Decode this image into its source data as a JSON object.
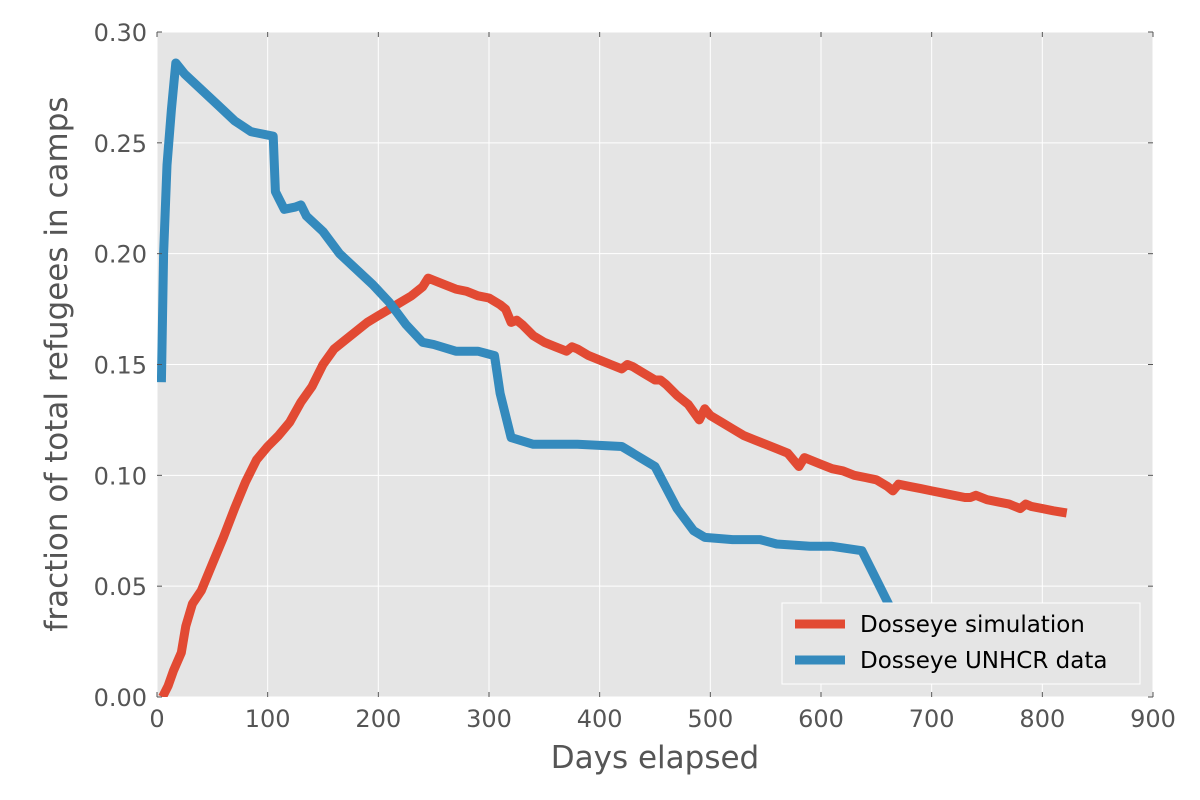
{
  "chart_data": {
    "type": "line",
    "title": "",
    "xlabel": "Days elapsed",
    "ylabel": "fraction of total refugees in camps",
    "xlim": [
      0,
      900
    ],
    "ylim": [
      0,
      0.3
    ],
    "x_ticks": [
      "0",
      "100",
      "200",
      "300",
      "400",
      "500",
      "600",
      "700",
      "800",
      "900"
    ],
    "y_ticks": [
      "0.00",
      "0.05",
      "0.10",
      "0.15",
      "0.20",
      "0.25",
      "0.30"
    ],
    "grid": true,
    "legend_position": "bottom-right",
    "colors": {
      "background": "#e5e5e5",
      "grid": "#ffffff"
    },
    "series": [
      {
        "name": "Dosseye simulation",
        "color": "#e24a33",
        "points": [
          [
            5,
            0.0
          ],
          [
            10,
            0.005
          ],
          [
            15,
            0.012
          ],
          [
            22,
            0.02
          ],
          [
            26,
            0.032
          ],
          [
            32,
            0.042
          ],
          [
            40,
            0.048
          ],
          [
            50,
            0.06
          ],
          [
            60,
            0.072
          ],
          [
            70,
            0.085
          ],
          [
            80,
            0.097
          ],
          [
            90,
            0.107
          ],
          [
            100,
            0.113
          ],
          [
            110,
            0.118
          ],
          [
            120,
            0.124
          ],
          [
            130,
            0.133
          ],
          [
            140,
            0.14
          ],
          [
            150,
            0.15
          ],
          [
            160,
            0.157
          ],
          [
            170,
            0.161
          ],
          [
            180,
            0.165
          ],
          [
            190,
            0.169
          ],
          [
            200,
            0.172
          ],
          [
            210,
            0.175
          ],
          [
            220,
            0.178
          ],
          [
            230,
            0.181
          ],
          [
            240,
            0.185
          ],
          [
            245,
            0.189
          ],
          [
            250,
            0.188
          ],
          [
            260,
            0.186
          ],
          [
            270,
            0.184
          ],
          [
            280,
            0.183
          ],
          [
            290,
            0.181
          ],
          [
            300,
            0.18
          ],
          [
            310,
            0.177
          ],
          [
            315,
            0.175
          ],
          [
            320,
            0.169
          ],
          [
            325,
            0.17
          ],
          [
            330,
            0.168
          ],
          [
            340,
            0.163
          ],
          [
            350,
            0.16
          ],
          [
            360,
            0.158
          ],
          [
            370,
            0.156
          ],
          [
            375,
            0.158
          ],
          [
            380,
            0.157
          ],
          [
            390,
            0.154
          ],
          [
            400,
            0.152
          ],
          [
            410,
            0.15
          ],
          [
            420,
            0.148
          ],
          [
            425,
            0.15
          ],
          [
            430,
            0.149
          ],
          [
            440,
            0.146
          ],
          [
            450,
            0.143
          ],
          [
            455,
            0.143
          ],
          [
            460,
            0.141
          ],
          [
            470,
            0.136
          ],
          [
            480,
            0.132
          ],
          [
            490,
            0.125
          ],
          [
            495,
            0.13
          ],
          [
            500,
            0.127
          ],
          [
            510,
            0.124
          ],
          [
            520,
            0.121
          ],
          [
            530,
            0.118
          ],
          [
            540,
            0.116
          ],
          [
            550,
            0.114
          ],
          [
            560,
            0.112
          ],
          [
            570,
            0.11
          ],
          [
            580,
            0.104
          ],
          [
            585,
            0.108
          ],
          [
            590,
            0.107
          ],
          [
            600,
            0.105
          ],
          [
            610,
            0.103
          ],
          [
            620,
            0.102
          ],
          [
            630,
            0.1
          ],
          [
            640,
            0.099
          ],
          [
            650,
            0.098
          ],
          [
            660,
            0.095
          ],
          [
            665,
            0.093
          ],
          [
            670,
            0.096
          ],
          [
            680,
            0.095
          ],
          [
            690,
            0.094
          ],
          [
            700,
            0.093
          ],
          [
            710,
            0.092
          ],
          [
            720,
            0.091
          ],
          [
            730,
            0.09
          ],
          [
            735,
            0.09
          ],
          [
            740,
            0.091
          ],
          [
            750,
            0.089
          ],
          [
            760,
            0.088
          ],
          [
            770,
            0.087
          ],
          [
            780,
            0.085
          ],
          [
            785,
            0.087
          ],
          [
            790,
            0.086
          ],
          [
            800,
            0.085
          ],
          [
            810,
            0.084
          ],
          [
            822,
            0.083
          ]
        ]
      },
      {
        "name": "Dosseye UNHCR data",
        "color": "#348abd",
        "points": [
          [
            4,
            0.142
          ],
          [
            6,
            0.2
          ],
          [
            9,
            0.24
          ],
          [
            13,
            0.265
          ],
          [
            17,
            0.286
          ],
          [
            25,
            0.281
          ],
          [
            40,
            0.274
          ],
          [
            55,
            0.267
          ],
          [
            70,
            0.26
          ],
          [
            85,
            0.255
          ],
          [
            105,
            0.253
          ],
          [
            107,
            0.228
          ],
          [
            110,
            0.225
          ],
          [
            115,
            0.22
          ],
          [
            125,
            0.221
          ],
          [
            130,
            0.222
          ],
          [
            135,
            0.217
          ],
          [
            150,
            0.21
          ],
          [
            165,
            0.2
          ],
          [
            180,
            0.193
          ],
          [
            195,
            0.186
          ],
          [
            210,
            0.178
          ],
          [
            225,
            0.168
          ],
          [
            240,
            0.16
          ],
          [
            250,
            0.159
          ],
          [
            270,
            0.156
          ],
          [
            290,
            0.156
          ],
          [
            305,
            0.154
          ],
          [
            310,
            0.137
          ],
          [
            320,
            0.117
          ],
          [
            340,
            0.114
          ],
          [
            380,
            0.114
          ],
          [
            420,
            0.113
          ],
          [
            450,
            0.104
          ],
          [
            470,
            0.085
          ],
          [
            485,
            0.075
          ],
          [
            495,
            0.072
          ],
          [
            520,
            0.071
          ],
          [
            545,
            0.071
          ],
          [
            560,
            0.069
          ],
          [
            590,
            0.068
          ],
          [
            610,
            0.068
          ],
          [
            637,
            0.066
          ],
          [
            650,
            0.053
          ],
          [
            660,
            0.043
          ],
          [
            665,
            0.038
          ]
        ]
      }
    ]
  }
}
